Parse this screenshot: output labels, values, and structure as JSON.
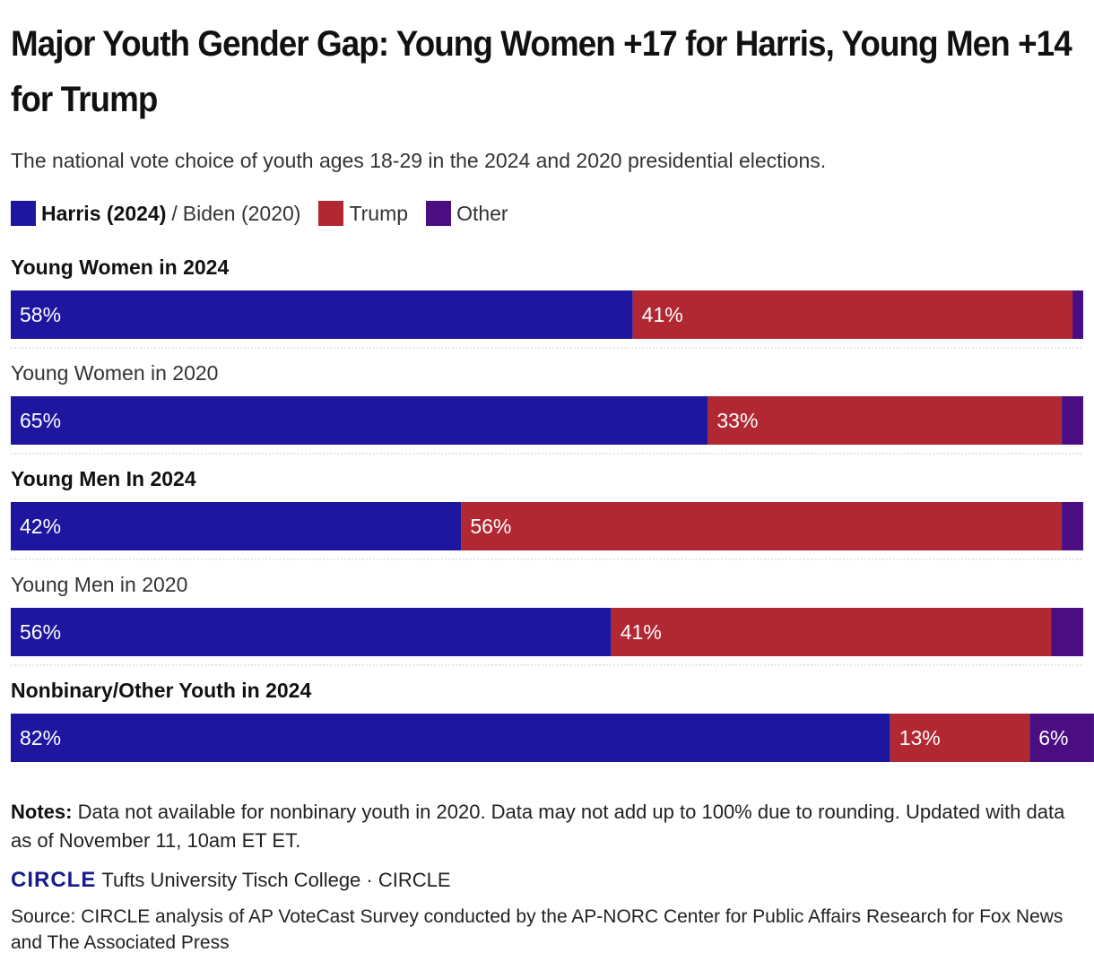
{
  "title": "Major Youth Gender Gap: Young Women +17 for Harris, Young Men +14 for Trump",
  "subtitle": "The national vote choice of youth ages 18-29 in the 2024 and 2020 presidential elections.",
  "legend": {
    "harris_bold": "Harris (2024)",
    "separator": "/",
    "biden": "Biden (2020)",
    "trump": "Trump",
    "other": "Other"
  },
  "colors": {
    "dem": "#1f16a0",
    "rep": "#b22832",
    "other": "#4a0d82",
    "divider": "#cccccc"
  },
  "chart_data": {
    "type": "bar",
    "orientation": "horizontal-stacked",
    "categories": [
      "Young Women in 2024",
      "Young Women in 2020",
      "Young Men In 2024",
      "Young Men in 2020",
      "Nonbinary/Other Youth in 2024"
    ],
    "bold_categories": [
      true,
      false,
      true,
      false,
      true
    ],
    "series": [
      {
        "name": "Harris (2024) / Biden (2020)",
        "values": [
          58,
          65,
          42,
          56,
          82
        ],
        "labels": [
          "58%",
          "65%",
          "42%",
          "56%",
          "82%"
        ]
      },
      {
        "name": "Trump",
        "values": [
          41,
          33,
          56,
          41,
          13
        ],
        "labels": [
          "41%",
          "33%",
          "56%",
          "41%",
          "13%"
        ]
      },
      {
        "name": "Other",
        "values": [
          1,
          2,
          2,
          3,
          6
        ],
        "labels": [
          "",
          "",
          "",
          "",
          "6%"
        ]
      }
    ],
    "xlim": [
      0,
      100
    ]
  },
  "notes": {
    "label": "Notes:",
    "text": "Data not available for nonbinary youth in 2020. Data may not add up to 100% due to rounding. Updated with data as of November 11, 10am ET ET."
  },
  "brand": {
    "logo_text": "CIRCLE",
    "credit": "Tufts University Tisch College · CIRCLE"
  },
  "source": "Source: CIRCLE analysis of AP VoteCast Survey conducted by the AP-NORC Center for Public Affairs Research for Fox News and The Associated Press"
}
